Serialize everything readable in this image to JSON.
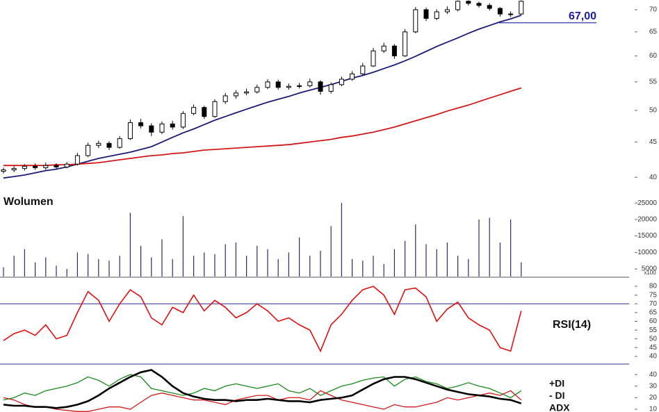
{
  "chart_data": [
    {
      "type": "candlestick",
      "open": [
        40.8,
        41,
        41.2,
        41.5,
        41.3,
        41.6,
        41.4,
        41.8,
        43,
        44.5,
        44.8,
        44.2,
        45.5,
        48,
        47.5,
        46.5,
        47.8,
        47.3,
        49.5,
        50.5,
        49,
        51.5,
        52.5,
        53,
        53.2,
        54,
        55,
        54,
        54.2,
        54.3,
        55,
        53.3,
        54.5,
        55.5,
        56.5,
        58,
        61,
        62,
        60,
        65,
        70,
        68,
        69.5,
        70,
        72,
        71.5,
        71,
        70.3,
        69,
        69
      ],
      "high": [
        41.3,
        41.5,
        41.8,
        41.9,
        42,
        41.9,
        42.1,
        43.4,
        44.9,
        45.2,
        45.1,
        45.9,
        48.5,
        48.6,
        47.9,
        48.2,
        48.3,
        49.9,
        51,
        50.8,
        51.9,
        53,
        53.5,
        53.8,
        54.5,
        55.5,
        55.4,
        54.7,
        54.8,
        55.6,
        55.3,
        54.9,
        56,
        57,
        58.6,
        61.6,
        62.7,
        62.4,
        65.6,
        70.6,
        70.5,
        70.1,
        70.8,
        72.2,
        72.2,
        71.9,
        71.5,
        70.6,
        69.6,
        72.2
      ],
      "low": [
        40.5,
        40.7,
        40.9,
        41,
        41,
        41.1,
        41.2,
        41.6,
        42.8,
        44.1,
        43.8,
        44,
        45.3,
        47.1,
        45.9,
        46.2,
        46.9,
        47,
        49.2,
        48.6,
        48.8,
        51.1,
        52,
        52.6,
        52.9,
        53.7,
        53.6,
        53.6,
        53.8,
        54,
        52.7,
        52.9,
        54.2,
        55.2,
        56.2,
        57.8,
        60.6,
        59.4,
        59.8,
        64.7,
        67.4,
        67.6,
        69,
        69.6,
        71,
        70.5,
        69.8,
        68.4,
        68.3,
        68.8
      ],
      "close": [
        41,
        41.2,
        41.5,
        41.3,
        41.6,
        41.4,
        41.8,
        43,
        44.5,
        44.8,
        44.2,
        45.5,
        48,
        47.5,
        46.5,
        47.8,
        47.3,
        49.5,
        50.5,
        49,
        51.5,
        52.5,
        53,
        53.2,
        54,
        55,
        54,
        54.2,
        54.3,
        55,
        53.3,
        54.5,
        55.5,
        56.5,
        58,
        61,
        62,
        60,
        65,
        70,
        68,
        69.5,
        70,
        72,
        71.5,
        71,
        70.3,
        69,
        69,
        72
      ],
      "overlays": [
        {
          "color": "#1a1a78",
          "values": [
            39.9,
            40.1,
            40.3,
            40.6,
            40.9,
            41.1,
            41.4,
            41.8,
            42.2,
            42.6,
            42.9,
            43.2,
            43.5,
            43.9,
            44.3,
            45.0,
            45.7,
            46.4,
            47.0,
            47.7,
            48.4,
            49.0,
            49.6,
            50.2,
            50.8,
            51.4,
            51.9,
            52.4,
            53.0,
            53.5,
            54.0,
            54.5,
            55.1,
            55.7,
            56.2,
            56.8,
            57.5,
            58.2,
            59.0,
            59.9,
            60.9,
            61.9,
            62.8,
            63.7,
            64.7,
            65.6,
            66.4,
            67.2,
            67.9,
            68.7
          ]
        },
        {
          "color": "#d01818",
          "values": [
            41.6,
            41.6,
            41.6,
            41.6,
            41.6,
            41.7,
            41.7,
            41.8,
            41.9,
            42.0,
            42.2,
            42.4,
            42.6,
            42.8,
            43.0,
            43.1,
            43.3,
            43.4,
            43.6,
            43.8,
            43.9,
            44.0,
            44.1,
            44.2,
            44.3,
            44.4,
            44.5,
            44.6,
            44.8,
            45.0,
            45.2,
            45.4,
            45.7,
            45.9,
            46.2,
            46.5,
            46.9,
            47.3,
            47.8,
            48.3,
            48.8,
            49.3,
            49.9,
            50.4,
            50.9,
            51.5,
            52.1,
            52.7,
            53.3,
            53.9
          ]
        }
      ],
      "hline": {
        "value": 67,
        "label": "67,00",
        "color": "#1c1ca0"
      },
      "log_scale": true,
      "ylim": [
        38.2,
        72.3
      ],
      "yticks": [
        40,
        45,
        50,
        55,
        60,
        65,
        70
      ]
    },
    {
      "type": "bar",
      "title": "Wolumen",
      "y_label": "x100",
      "color": "#2a2a6a",
      "values": [
        5500,
        9000,
        11000,
        7000,
        8500,
        6000,
        5000,
        10000,
        9500,
        8000,
        7500,
        9000,
        22000,
        12000,
        8500,
        14000,
        8000,
        21000,
        9000,
        10000,
        9500,
        12500,
        13000,
        9000,
        12000,
        11000,
        8000,
        10000,
        14500,
        9000,
        10500,
        18000,
        25000,
        8000,
        7500,
        9000,
        6500,
        11000,
        13500,
        18500,
        12500,
        11000,
        13000,
        9000,
        8000,
        20000,
        20500,
        13000,
        20000,
        7000
      ],
      "ylim": [
        2700,
        26500
      ],
      "yticks": [
        5000,
        10000,
        15000,
        20000,
        25000
      ]
    },
    {
      "type": "line",
      "label": "RSI(14)",
      "color": "#e01010",
      "hline": 70,
      "hline_color": "#2a2a90",
      "values": [
        49,
        53,
        55,
        52,
        58,
        50,
        52,
        65,
        77,
        72,
        60,
        70,
        78,
        74,
        62,
        58,
        68,
        65,
        75,
        66,
        72,
        68,
        62,
        65,
        70,
        66,
        60,
        62,
        58,
        55,
        43,
        58,
        64,
        72,
        78,
        80,
        75,
        64,
        78,
        79,
        74,
        60,
        67,
        71,
        62,
        58,
        55,
        45,
        43,
        66
      ],
      "ylim": [
        36,
        84.8
      ],
      "yticks": [
        40,
        45,
        50,
        55,
        60,
        65,
        70,
        75,
        80
      ]
    },
    {
      "type": "line",
      "series": [
        {
          "name": "+DI",
          "color": "#1a8a1a",
          "width": 1.3,
          "values": [
            18,
            20,
            24,
            22,
            26,
            28,
            30,
            33,
            38,
            35,
            30,
            36,
            40,
            38,
            28,
            26,
            24,
            22,
            24,
            28,
            26,
            30,
            32,
            30,
            28,
            30,
            32,
            26,
            24,
            28,
            22,
            26,
            30,
            32,
            35,
            37,
            38,
            30,
            36,
            38,
            34,
            32,
            28,
            30,
            33,
            30,
            28,
            24,
            20,
            26
          ]
        },
        {
          "name": "- DI",
          "color": "#d01818",
          "width": 1.3,
          "values": [
            20,
            18,
            14,
            12,
            12,
            10,
            9,
            8,
            8,
            10,
            12,
            12,
            10,
            16,
            22,
            24,
            22,
            20,
            18,
            18,
            16,
            14,
            18,
            20,
            22,
            22,
            18,
            20,
            20,
            18,
            26,
            22,
            18,
            16,
            14,
            12,
            10,
            14,
            12,
            12,
            14,
            16,
            20,
            18,
            20,
            22,
            24,
            22,
            26,
            18
          ]
        },
        {
          "name": "ADX",
          "color": "#000000",
          "width": 2.6,
          "values": [
            14,
            13,
            13,
            12,
            12,
            11,
            12,
            14,
            17,
            22,
            28,
            33,
            38,
            42,
            44,
            38,
            30,
            24,
            21,
            19,
            18,
            18,
            17,
            18,
            18,
            19,
            18,
            17,
            17,
            16,
            18,
            19,
            20,
            22,
            27,
            32,
            36,
            38,
            38,
            36,
            33,
            30,
            27,
            25,
            23,
            22,
            21,
            19,
            18,
            15
          ]
        }
      ],
      "ylim": [
        7.6,
        48.5
      ],
      "yticks": [
        10,
        20,
        30,
        40
      ]
    }
  ]
}
